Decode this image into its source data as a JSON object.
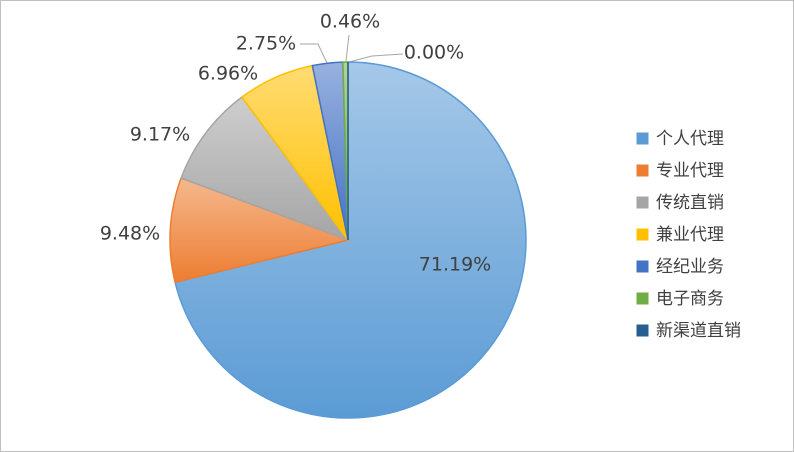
{
  "chart_data": {
    "type": "pie",
    "categories": [
      "个人代理",
      "专业代理",
      "传统直销",
      "兼业代理",
      "经纪业务",
      "电子商务",
      "新渠道直销"
    ],
    "values": [
      71.19,
      9.48,
      9.17,
      6.96,
      2.75,
      0.46,
      0.0
    ],
    "value_labels": [
      "71.19%",
      "9.48%",
      "9.17%",
      "6.96%",
      "2.75%",
      "0.46%",
      "0.00%"
    ],
    "colors": [
      "#5b9bd5",
      "#ed7d31",
      "#a5a5a5",
      "#ffc000",
      "#4472c4",
      "#70ad47",
      "#255e91"
    ],
    "legend": "right"
  }
}
